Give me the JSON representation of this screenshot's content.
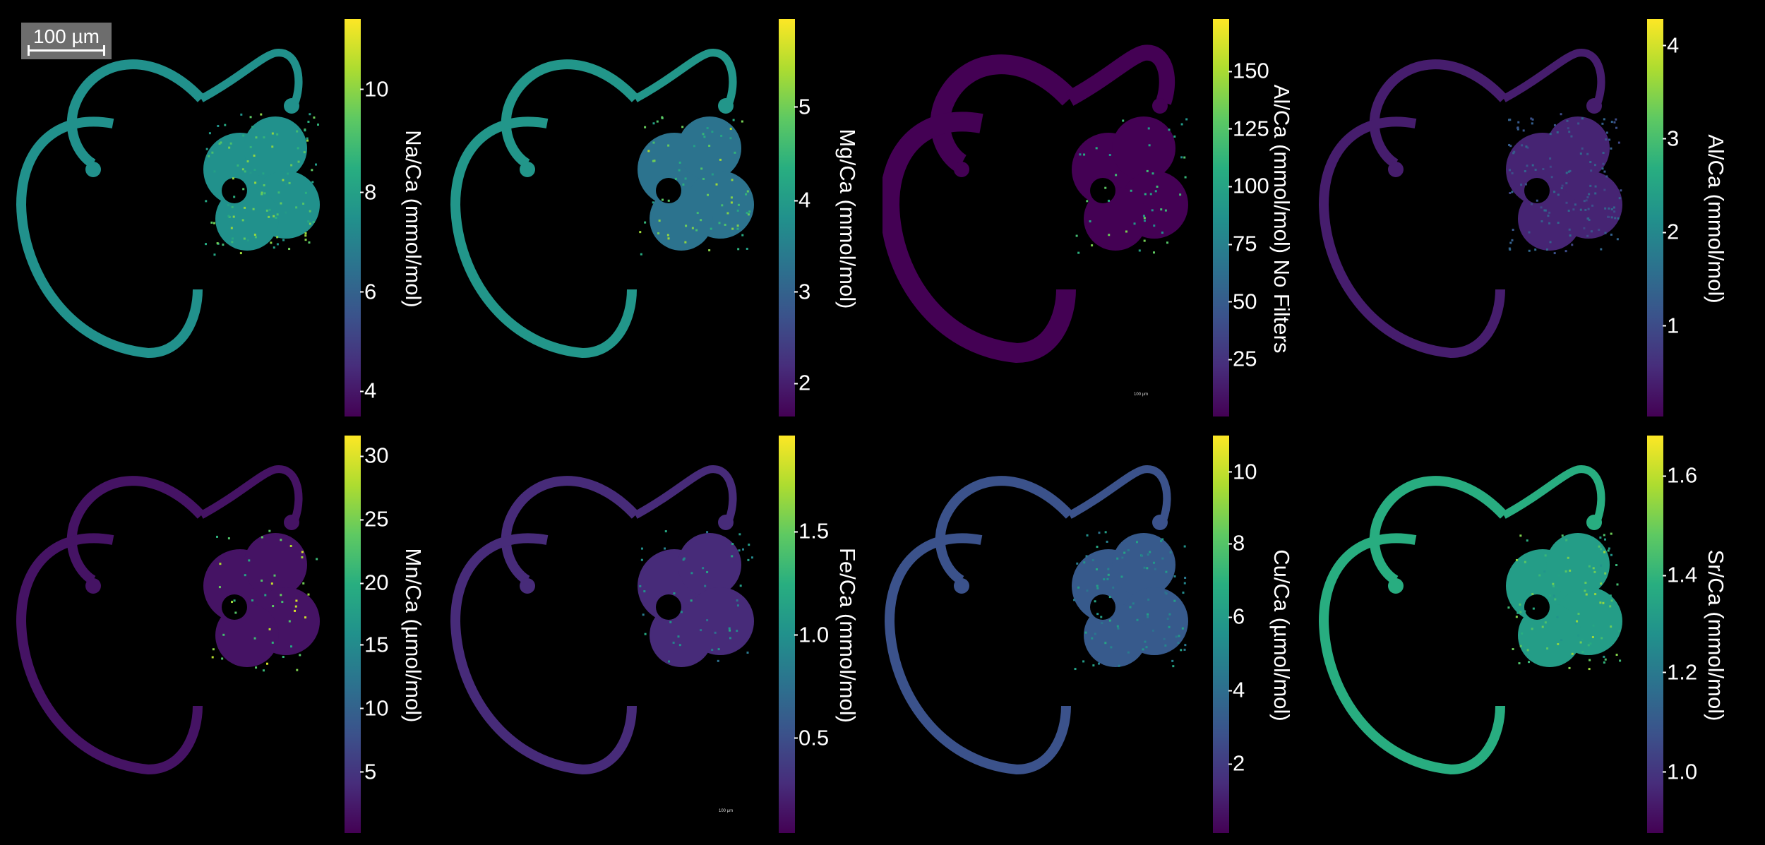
{
  "colors": {
    "background": "#000000",
    "viridis": [
      "#440154",
      "#472d7b",
      "#3b528b",
      "#2c728e",
      "#21918c",
      "#28ae80",
      "#5ec962",
      "#addc30",
      "#fde725"
    ]
  },
  "scale_bar": {
    "label": "100 µm"
  },
  "mini_scale_label": "100 µm",
  "panels": [
    {
      "label": "Na/Ca (mmol/mol)",
      "ticks": [
        {
          "v": "4",
          "p": 0.935
        },
        {
          "v": "6",
          "p": 0.685
        },
        {
          "v": "8",
          "p": 0.435
        },
        {
          "v": "10",
          "p": 0.175
        }
      ],
      "body_level": 0.5,
      "outer_level": 0.5,
      "speck_level": 0.85,
      "speck_density": 0.12,
      "outer_style": "grainy"
    },
    {
      "label": "Mg/Ca (mmol/mol)",
      "ticks": [
        {
          "v": "2",
          "p": 0.915
        },
        {
          "v": "3",
          "p": 0.685
        },
        {
          "v": "4",
          "p": 0.455
        },
        {
          "v": "5",
          "p": 0.22
        }
      ],
      "body_level": 0.38,
      "outer_level": 0.52,
      "speck_level": 0.9,
      "speck_density": 0.08,
      "outer_style": "grainy"
    },
    {
      "label": "Al/Ca (mmol/mol) No Filters",
      "ticks": [
        {
          "v": "25",
          "p": 0.855
        },
        {
          "v": "50",
          "p": 0.71
        },
        {
          "v": "75",
          "p": 0.565
        },
        {
          "v": "100",
          "p": 0.42
        },
        {
          "v": "125",
          "p": 0.275
        },
        {
          "v": "150",
          "p": 0.13
        }
      ],
      "body_level": 0.0,
      "outer_level": 0.0,
      "speck_level": 0.8,
      "speck_density": 0.05,
      "outer_style": "thick"
    },
    {
      "label": "Al/Ca (mmol/mol)",
      "ticks": [
        {
          "v": "1",
          "p": 0.77
        },
        {
          "v": "2",
          "p": 0.535
        },
        {
          "v": "3",
          "p": 0.3
        },
        {
          "v": "4",
          "p": 0.065
        }
      ],
      "body_level": 0.1,
      "outer_level": 0.08,
      "speck_level": 0.35,
      "speck_density": 0.15,
      "outer_style": "grainy"
    },
    {
      "label": "Mn/Ca (µmol/mol)",
      "ticks": [
        {
          "v": "5",
          "p": 0.845
        },
        {
          "v": "10",
          "p": 0.685
        },
        {
          "v": "15",
          "p": 0.525
        },
        {
          "v": "20",
          "p": 0.37
        },
        {
          "v": "25",
          "p": 0.21
        },
        {
          "v": "30",
          "p": 0.05
        }
      ],
      "body_level": 0.05,
      "outer_level": 0.05,
      "speck_level": 0.95,
      "speck_density": 0.05,
      "outer_style": "grainy"
    },
    {
      "label": "Fe/Ca (mmol/mol)",
      "ticks": [
        {
          "v": "0.5",
          "p": 0.76
        },
        {
          "v": "1.0",
          "p": 0.5
        },
        {
          "v": "1.5",
          "p": 0.24
        }
      ],
      "body_level": 0.12,
      "outer_level": 0.12,
      "speck_level": 0.6,
      "speck_density": 0.05,
      "outer_style": "grainy"
    },
    {
      "label": "Cu/Ca (µmol/mol)",
      "ticks": [
        {
          "v": "2",
          "p": 0.825
        },
        {
          "v": "4",
          "p": 0.64
        },
        {
          "v": "6",
          "p": 0.455
        },
        {
          "v": "8",
          "p": 0.27
        },
        {
          "v": "10",
          "p": 0.09
        }
      ],
      "body_level": 0.28,
      "outer_level": 0.25,
      "speck_level": 0.6,
      "speck_density": 0.1,
      "outer_style": "grainy"
    },
    {
      "label": "Sr/Ca (mmol/mol)",
      "ticks": [
        {
          "v": "1.0",
          "p": 0.845
        },
        {
          "v": "1.2",
          "p": 0.595
        },
        {
          "v": "1.4",
          "p": 0.35
        },
        {
          "v": "1.6",
          "p": 0.1
        }
      ],
      "body_level": 0.55,
      "outer_level": 0.62,
      "speck_level": 0.85,
      "speck_density": 0.1,
      "outer_style": "grainy"
    }
  ]
}
